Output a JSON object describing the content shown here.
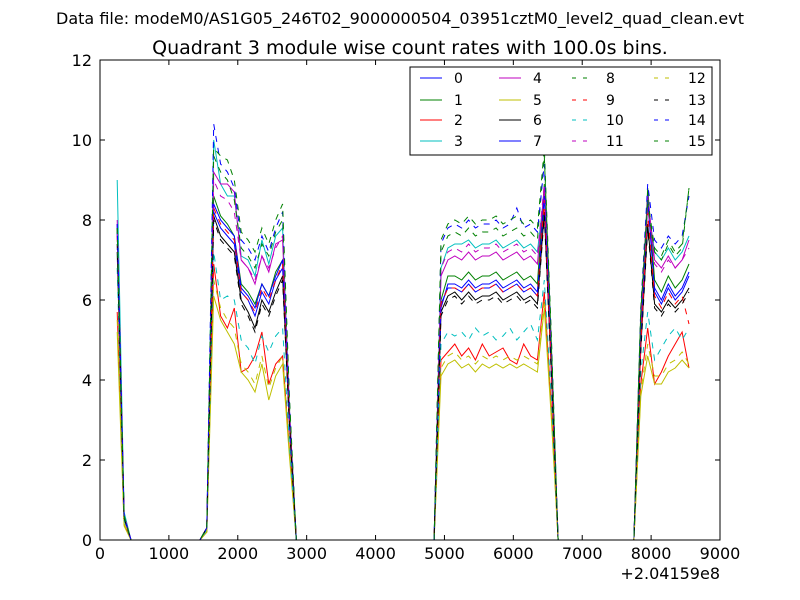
{
  "chart_data": {
    "type": "line",
    "supertitle": "Data file: modeM0/AS1G05_246T02_9000000504_03951cztM0_level2_quad_clean.evt",
    "title": "Quadrant 3 module wise count rates with 100.0s bins.",
    "xlabel": "",
    "ylabel": "",
    "x_offset_label": "+2.04159e8",
    "xlim": [
      0,
      9000
    ],
    "ylim": [
      0,
      12
    ],
    "x_ticks": [
      0,
      1000,
      2000,
      3000,
      4000,
      5000,
      6000,
      7000,
      8000,
      9000
    ],
    "y_ticks": [
      0,
      2,
      4,
      6,
      8,
      10,
      12
    ],
    "x_tick_labels": [
      "0",
      "1000",
      "2000",
      "3000",
      "4000",
      "5000",
      "6000",
      "7000",
      "8000",
      "9000"
    ],
    "y_tick_labels": [
      "0",
      "2",
      "4",
      "6",
      "8",
      "10",
      "12"
    ],
    "grid": false,
    "legend_placement": "top-right",
    "legend_columns": 4,
    "segments": [
      {
        "x": [
          250,
          350,
          450
        ],
        "spread": [
          0.3,
          0.08,
          0.0
        ]
      },
      {
        "x": [
          1450,
          1550,
          1650,
          1750,
          1850,
          1950,
          2050,
          2150,
          2250,
          2350,
          2450,
          2550,
          2650,
          2750,
          2850
        ],
        "spread": [
          0.02,
          0.25,
          1.3,
          1.1,
          1.1,
          1.1,
          1.15,
          1.0,
          0.95,
          0.75,
          0.7,
          0.85,
          0.8,
          0.3,
          0.02
        ]
      },
      {
        "x": [
          4850,
          4950,
          5050,
          5150,
          5250,
          5350,
          5450,
          5550,
          5650,
          5750,
          5850,
          5950,
          6050,
          6150,
          6250,
          6350,
          6450,
          6550,
          6650
        ],
        "spread": [
          0.05,
          0.6,
          0.9,
          0.85,
          0.9,
          0.85,
          0.9,
          0.85,
          0.9,
          0.85,
          0.9,
          0.9,
          0.85,
          0.9,
          0.9,
          0.85,
          0.9,
          0.6,
          0.02
        ]
      },
      {
        "x": [
          7750,
          7850,
          7950,
          8050,
          8150,
          8250,
          8350,
          8450,
          8550
        ],
        "spread": [
          0.05,
          0.5,
          1.05,
          0.85,
          0.9,
          0.8,
          0.9,
          0.85,
          0.75
        ]
      }
    ],
    "series": [
      {
        "name": "0",
        "color": "#0000ff",
        "dash": "solid",
        "values": [
          [
            7.9,
            0.6,
            0
          ],
          [
            0,
            0.3,
            8.2,
            7.8,
            7.6,
            7.4,
            6.2,
            6.0,
            5.6,
            6.2,
            5.9,
            6.5,
            6.8,
            3.0,
            0
          ],
          [
            0,
            5.8,
            6.4,
            6.4,
            6.3,
            6.5,
            6.3,
            6.4,
            6.4,
            6.5,
            6.3,
            6.4,
            6.5,
            6.3,
            6.4,
            6.2,
            8.8,
            4.5,
            0
          ],
          [
            0,
            5.0,
            8.7,
            6.3,
            6.0,
            6.4,
            6.1,
            6.3,
            6.7
          ]
        ]
      },
      {
        "name": "1",
        "color": "#008000",
        "dash": "solid",
        "values": [
          [
            7.8,
            0.6,
            0
          ],
          [
            0,
            0.3,
            8.6,
            8.1,
            7.9,
            7.6,
            6.4,
            6.2,
            5.9,
            6.4,
            6.1,
            6.7,
            7.0,
            3.1,
            0
          ],
          [
            0,
            6.0,
            6.6,
            6.6,
            6.5,
            6.7,
            6.5,
            6.6,
            6.6,
            6.7,
            6.5,
            6.6,
            6.7,
            6.5,
            6.6,
            6.4,
            8.9,
            4.6,
            0
          ],
          [
            0,
            5.1,
            8.8,
            6.5,
            6.2,
            6.6,
            6.3,
            6.5,
            6.9
          ]
        ]
      },
      {
        "name": "2",
        "color": "#ff0000",
        "dash": "solid",
        "values": [
          [
            5.7,
            0.4,
            0
          ],
          [
            0,
            0.2,
            6.9,
            5.6,
            5.3,
            5.8,
            4.2,
            4.3,
            4.6,
            5.2,
            3.9,
            4.4,
            4.6,
            2.3,
            0
          ],
          [
            0,
            4.5,
            4.7,
            4.9,
            4.6,
            4.8,
            4.5,
            4.9,
            4.6,
            4.7,
            4.8,
            4.5,
            4.4,
            4.9,
            4.6,
            4.5,
            6.2,
            3.4,
            0
          ],
          [
            0,
            3.9,
            5.3,
            3.9,
            4.2,
            4.6,
            4.9,
            5.2,
            4.3
          ]
        ]
      },
      {
        "name": "3",
        "color": "#00bfbf",
        "dash": "solid",
        "values": [
          [
            9.0,
            0.7,
            0
          ],
          [
            0,
            0.3,
            10.0,
            8.9,
            8.6,
            8.6,
            7.1,
            7.0,
            6.6,
            7.5,
            6.9,
            7.6,
            7.8,
            3.3,
            0
          ],
          [
            0,
            6.8,
            7.3,
            7.4,
            7.4,
            7.5,
            7.3,
            7.4,
            7.4,
            7.5,
            7.3,
            7.4,
            7.5,
            7.3,
            7.4,
            7.2,
            8.7,
            4.8,
            0
          ],
          [
            0,
            5.6,
            8.4,
            7.2,
            7.0,
            7.3,
            7.0,
            7.2,
            7.6
          ]
        ]
      },
      {
        "name": "4",
        "color": "#bf00bf",
        "dash": "solid",
        "values": [
          [
            7.9,
            0.6,
            0
          ],
          [
            0,
            0.3,
            9.2,
            8.9,
            8.9,
            8.7,
            7.0,
            6.8,
            6.4,
            7.1,
            6.7,
            7.4,
            7.5,
            3.3,
            0
          ],
          [
            0,
            6.6,
            7.0,
            7.1,
            7.0,
            7.2,
            7.0,
            7.1,
            7.1,
            7.2,
            7.0,
            7.1,
            7.2,
            7.0,
            7.1,
            6.9,
            8.8,
            4.8,
            0
          ],
          [
            0,
            5.6,
            8.6,
            7.0,
            6.8,
            7.1,
            6.8,
            7.0,
            7.5
          ]
        ]
      },
      {
        "name": "5",
        "color": "#bfbf00",
        "dash": "solid",
        "values": [
          [
            5.2,
            0.35,
            0
          ],
          [
            0,
            0.2,
            6.1,
            5.5,
            5.2,
            4.9,
            4.2,
            4.0,
            3.7,
            4.4,
            3.5,
            4.1,
            4.4,
            2.1,
            0
          ],
          [
            0,
            4.1,
            4.4,
            4.5,
            4.3,
            4.4,
            4.2,
            4.4,
            4.3,
            4.4,
            4.3,
            4.4,
            4.3,
            4.4,
            4.3,
            4.2,
            5.8,
            3.1,
            0
          ],
          [
            0,
            3.6,
            4.6,
            3.9,
            3.9,
            4.2,
            4.3,
            4.5,
            4.3
          ]
        ]
      },
      {
        "name": "6",
        "color": "#000000",
        "dash": "solid",
        "values": [
          [
            7.2,
            0.55,
            0
          ],
          [
            0,
            0.3,
            8.1,
            7.6,
            7.4,
            7.2,
            6.0,
            5.7,
            5.3,
            6.0,
            5.7,
            6.2,
            6.6,
            2.9,
            0
          ],
          [
            0,
            5.7,
            6.1,
            6.2,
            6.0,
            6.2,
            6.0,
            6.1,
            6.1,
            6.2,
            6.0,
            6.1,
            6.2,
            6.0,
            6.1,
            5.9,
            8.2,
            4.3,
            0
          ],
          [
            0,
            4.8,
            7.9,
            5.9,
            5.7,
            6.0,
            5.8,
            6.0,
            6.3
          ]
        ]
      },
      {
        "name": "7",
        "color": "#0000ff",
        "dash": "solid",
        "values": [
          [
            7.7,
            0.6,
            0
          ],
          [
            0,
            0.3,
            8.4,
            8.0,
            7.8,
            7.6,
            6.3,
            6.1,
            5.8,
            6.4,
            6.1,
            6.6,
            7.0,
            3.0,
            0
          ],
          [
            0,
            5.9,
            6.3,
            6.3,
            6.2,
            6.4,
            6.2,
            6.3,
            6.3,
            6.4,
            6.2,
            6.3,
            6.4,
            6.2,
            6.3,
            6.1,
            8.6,
            4.4,
            0
          ],
          [
            0,
            4.9,
            8.5,
            6.2,
            5.9,
            6.3,
            6.0,
            6.2,
            6.6
          ]
        ]
      },
      {
        "name": "8",
        "color": "#008000",
        "dash": "dashed",
        "values": [
          [
            7.8,
            0.6,
            0
          ],
          [
            0,
            0.3,
            9.6,
            9.2,
            9.0,
            8.5,
            7.3,
            7.1,
            6.8,
            7.4,
            7.1,
            7.7,
            8.0,
            3.4,
            0
          ],
          [
            0,
            7.2,
            7.6,
            7.7,
            7.6,
            7.8,
            7.6,
            7.7,
            7.7,
            7.8,
            7.6,
            7.7,
            7.8,
            7.6,
            7.7,
            7.5,
            9.6,
            5.0,
            0
          ],
          [
            0,
            5.7,
            8.4,
            7.2,
            7.0,
            7.4,
            7.1,
            7.3,
            8.8
          ]
        ]
      },
      {
        "name": "9",
        "color": "#ff0000",
        "dash": "dashed",
        "values": [
          [
            7.6,
            0.6,
            0
          ],
          [
            0,
            0.3,
            8.3,
            7.9,
            7.7,
            7.5,
            6.2,
            6.0,
            5.7,
            6.3,
            6.0,
            6.5,
            6.9,
            3.0,
            0
          ],
          [
            0,
            5.9,
            6.3,
            6.3,
            6.2,
            6.4,
            6.2,
            6.3,
            6.3,
            6.4,
            6.2,
            6.3,
            6.4,
            6.2,
            6.3,
            6.1,
            8.5,
            4.4,
            0
          ],
          [
            0,
            4.9,
            8.2,
            6.1,
            5.8,
            6.2,
            5.9,
            6.1,
            5.4
          ]
        ]
      },
      {
        "name": "10",
        "color": "#00bfbf",
        "dash": "dashed",
        "values": [
          [
            6.8,
            0.5,
            0
          ],
          [
            0,
            0.25,
            7.2,
            6.0,
            6.1,
            6.0,
            5.0,
            4.8,
            4.4,
            5.1,
            4.7,
            5.1,
            5.3,
            2.4,
            0
          ],
          [
            0,
            4.9,
            5.2,
            5.1,
            5.2,
            5.0,
            5.3,
            5.1,
            5.2,
            5.0,
            5.1,
            5.3,
            5.0,
            5.2,
            5.4,
            5.0,
            6.5,
            3.6,
            0
          ],
          [
            0,
            4.2,
            5.7,
            4.5,
            4.8,
            5.1,
            5.3,
            5.0,
            5.3
          ]
        ]
      },
      {
        "name": "11",
        "color": "#bf00bf",
        "dash": "dashed",
        "values": [
          [
            8.0,
            0.6,
            0
          ],
          [
            0,
            0.3,
            9.0,
            8.6,
            8.5,
            8.2,
            7.0,
            6.8,
            6.5,
            7.1,
            6.8,
            7.3,
            7.6,
            3.3,
            0
          ],
          [
            0,
            6.8,
            7.2,
            7.3,
            7.2,
            7.4,
            7.2,
            7.3,
            7.3,
            7.4,
            7.2,
            7.3,
            7.4,
            7.2,
            7.3,
            7.1,
            8.9,
            4.8,
            0
          ],
          [
            0,
            5.5,
            8.3,
            6.9,
            6.7,
            7.0,
            6.8,
            7.0,
            7.3
          ]
        ]
      },
      {
        "name": "12",
        "color": "#bfbf00",
        "dash": "dashed",
        "values": [
          [
            5.5,
            0.4,
            0
          ],
          [
            0,
            0.2,
            6.5,
            5.8,
            5.5,
            5.3,
            4.4,
            4.2,
            3.9,
            4.6,
            3.8,
            4.3,
            4.6,
            2.2,
            0
          ],
          [
            0,
            4.3,
            4.6,
            4.7,
            4.5,
            4.6,
            4.4,
            4.6,
            4.5,
            4.6,
            4.5,
            4.6,
            4.5,
            4.6,
            4.5,
            4.4,
            6.0,
            3.2,
            0
          ],
          [
            0,
            3.7,
            4.9,
            4.1,
            4.1,
            4.4,
            4.5,
            4.7,
            4.4
          ]
        ]
      },
      {
        "name": "13",
        "color": "#000000",
        "dash": "dashed",
        "values": [
          [
            7.4,
            0.55,
            0
          ],
          [
            0,
            0.3,
            8.0,
            7.5,
            7.3,
            7.1,
            5.9,
            5.6,
            5.2,
            5.9,
            5.6,
            6.1,
            6.5,
            2.9,
            0
          ],
          [
            0,
            5.6,
            6.0,
            6.1,
            5.9,
            6.1,
            5.9,
            6.0,
            6.0,
            6.1,
            5.9,
            6.0,
            6.1,
            5.9,
            6.0,
            5.8,
            8.1,
            4.2,
            0
          ],
          [
            0,
            4.7,
            7.8,
            5.8,
            5.6,
            5.9,
            5.7,
            5.9,
            6.2
          ]
        ]
      },
      {
        "name": "14",
        "color": "#0000ff",
        "dash": "dashed",
        "values": [
          [
            7.9,
            0.6,
            0
          ],
          [
            0,
            0.3,
            10.4,
            9.4,
            9.2,
            8.8,
            7.5,
            7.3,
            7.0,
            7.6,
            7.2,
            7.8,
            8.2,
            3.5,
            0
          ],
          [
            0,
            7.4,
            7.8,
            7.9,
            7.8,
            8.0,
            7.8,
            7.9,
            7.9,
            8.0,
            7.8,
            7.9,
            8.3,
            7.8,
            7.9,
            7.7,
            9.4,
            5.1,
            0
          ],
          [
            0,
            5.8,
            8.9,
            7.5,
            7.3,
            7.6,
            7.4,
            7.6,
            8.6
          ]
        ]
      },
      {
        "name": "15",
        "color": "#008000",
        "dash": "dashed",
        "values": [
          [
            7.8,
            0.6,
            0
          ],
          [
            0,
            0.3,
            9.8,
            9.6,
            9.5,
            9.0,
            7.7,
            7.5,
            7.2,
            7.8,
            7.4,
            8.0,
            8.4,
            3.6,
            0
          ],
          [
            0,
            7.5,
            7.9,
            8.0,
            7.9,
            8.1,
            7.9,
            8.0,
            8.0,
            8.1,
            7.9,
            8.0,
            8.1,
            7.9,
            8.0,
            7.8,
            9.8,
            5.2,
            0
          ],
          [
            0,
            5.8,
            8.5,
            7.3,
            7.1,
            7.5,
            7.2,
            7.4,
            8.8
          ]
        ]
      }
    ]
  }
}
